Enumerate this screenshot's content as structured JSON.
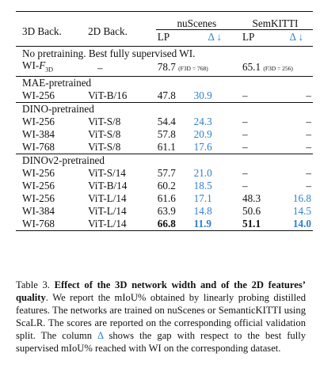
{
  "table": {
    "headers": {
      "col1": "3D Back.",
      "col2": "2D Back.",
      "nuscenes": "nuScenes",
      "semkitti": "SemKITTI",
      "lp": "LP",
      "delta": "Δ ↓"
    },
    "no_pretraining": {
      "title": "No pretraining. Best fully supervised WI.",
      "row": {
        "backbone": "WI-",
        "backbone_sub": "F",
        "backbone_sub2": "3D",
        "twod": "–",
        "nu_lp": "78.7",
        "nu_note": "(F3D = 768)",
        "sk_lp": "65.1",
        "sk_note": "(F3D = 256)"
      }
    },
    "sections": [
      {
        "title": "MAE-pretrained",
        "rows": [
          {
            "b3": "WI-256",
            "b2": "ViT-B/16",
            "lp": "47.8",
            "d": "30.9",
            "slp": "–",
            "sd": "–"
          }
        ]
      },
      {
        "title": "DINO-pretrained",
        "rows": [
          {
            "b3": "WI-256",
            "b2": "ViT-S/8",
            "lp": "54.4",
            "d": "24.3",
            "slp": "–",
            "sd": "–"
          },
          {
            "b3": "WI-384",
            "b2": "ViT-S/8",
            "lp": "57.8",
            "d": "20.9",
            "slp": "–",
            "sd": "–"
          },
          {
            "b3": "WI-768",
            "b2": "ViT-S/8",
            "lp": "61.1",
            "d": "17.6",
            "slp": "–",
            "sd": "–"
          }
        ]
      },
      {
        "title": "DINOv2-pretrained",
        "rows": [
          {
            "b3": "WI-256",
            "b2": "ViT-S/14",
            "lp": "57.7",
            "d": "21.0",
            "slp": "–",
            "sd": "–"
          },
          {
            "b3": "WI-256",
            "b2": "ViT-B/14",
            "lp": "60.2",
            "d": "18.5",
            "slp": "–",
            "sd": "–"
          },
          {
            "b3": "WI-256",
            "b2": "ViT-L/14",
            "lp": "61.6",
            "d": "17.1",
            "slp": "48.3",
            "sd": "16.8"
          },
          {
            "b3": "WI-384",
            "b2": "ViT-L/14",
            "lp": "63.9",
            "d": "14.8",
            "slp": "50.6",
            "sd": "14.5"
          },
          {
            "b3": "WI-768",
            "b2": "ViT-L/14",
            "lp": "66.8",
            "d": "11.9",
            "slp": "51.1",
            "sd": "14.0",
            "bold": true
          }
        ]
      }
    ]
  },
  "caption": {
    "label": "Table 3.",
    "title": "Effect of the 3D network width and of the 2D features’ quality",
    "body1": ". We report the mIoU% obtained by linearly probing distilled features. The networks are trained on nuScenes or SemanticKITTI using ScaLR. The scores are reported on the corresponding official validation split. The column ",
    "delta": "Δ",
    "body2": " shows the gap with respect to the best fully supervised mIoU% reached with WI on the corresponding dataset."
  },
  "colors": {
    "delta_blue": "#2f7fcf",
    "text": "#111111"
  }
}
